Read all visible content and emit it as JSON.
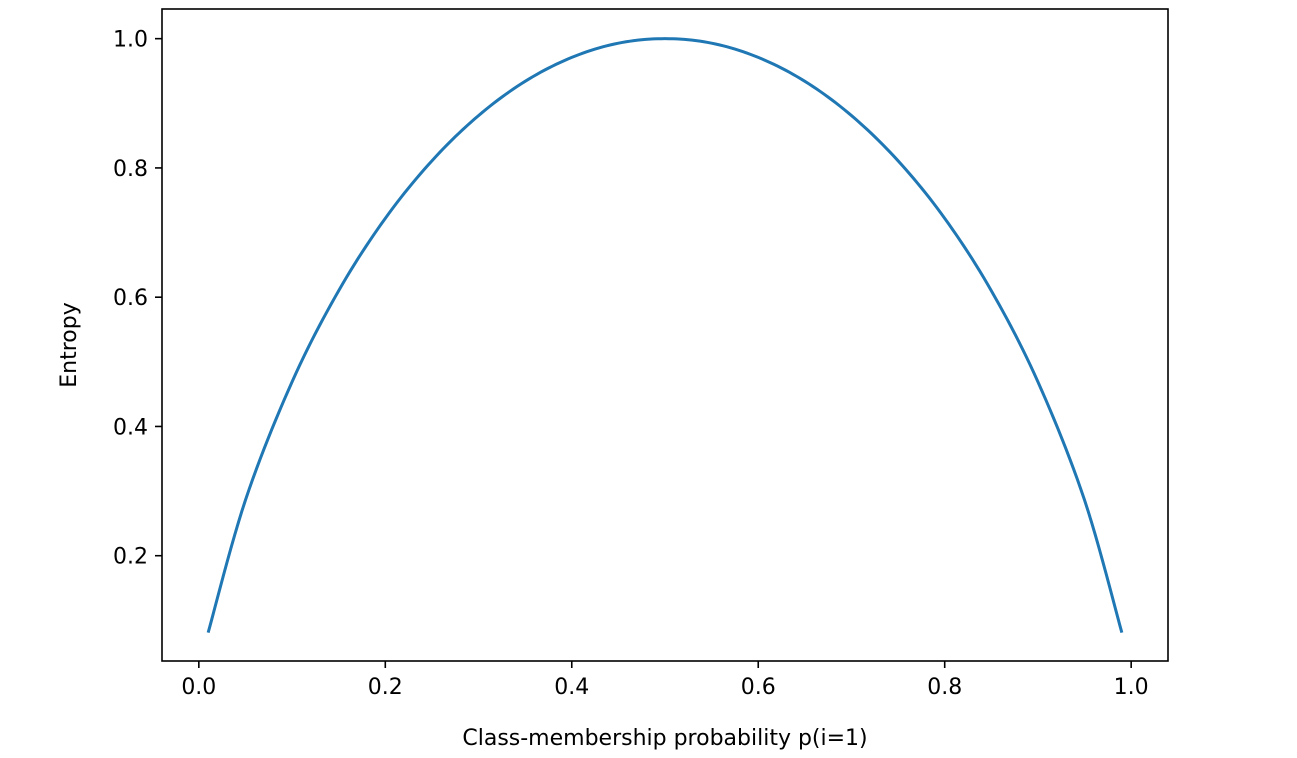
{
  "chart_data": {
    "type": "line",
    "title": "",
    "xlabel": "Class-membership probability p(i=1)",
    "ylabel": "Entropy",
    "xlim": [
      -0.0395,
      1.0395
    ],
    "ylim": [
      0.0371,
      1.0459
    ],
    "x_ticks": [
      0.0,
      0.2,
      0.4,
      0.6,
      0.8,
      1.0
    ],
    "x_tick_labels": [
      "0.0",
      "0.2",
      "0.4",
      "0.6",
      "0.8",
      "1.0"
    ],
    "y_ticks": [
      0.2,
      0.4,
      0.6,
      0.8,
      1.0
    ],
    "y_tick_labels": [
      "0.2",
      "0.4",
      "0.6",
      "0.8",
      "1.0"
    ],
    "grid": false,
    "series": [
      {
        "color": "#1f77b4",
        "x": [
          0.01,
          0.05,
          0.1,
          0.15,
          0.2,
          0.25,
          0.3,
          0.35,
          0.4,
          0.45,
          0.5,
          0.55,
          0.6,
          0.65,
          0.7,
          0.75,
          0.8,
          0.85,
          0.9,
          0.95,
          0.99
        ],
        "y": [
          0.081,
          0.286,
          0.469,
          0.61,
          0.722,
          0.811,
          0.881,
          0.934,
          0.971,
          0.993,
          1.0,
          0.993,
          0.971,
          0.934,
          0.881,
          0.811,
          0.722,
          0.61,
          0.469,
          0.286,
          0.081
        ]
      }
    ]
  }
}
